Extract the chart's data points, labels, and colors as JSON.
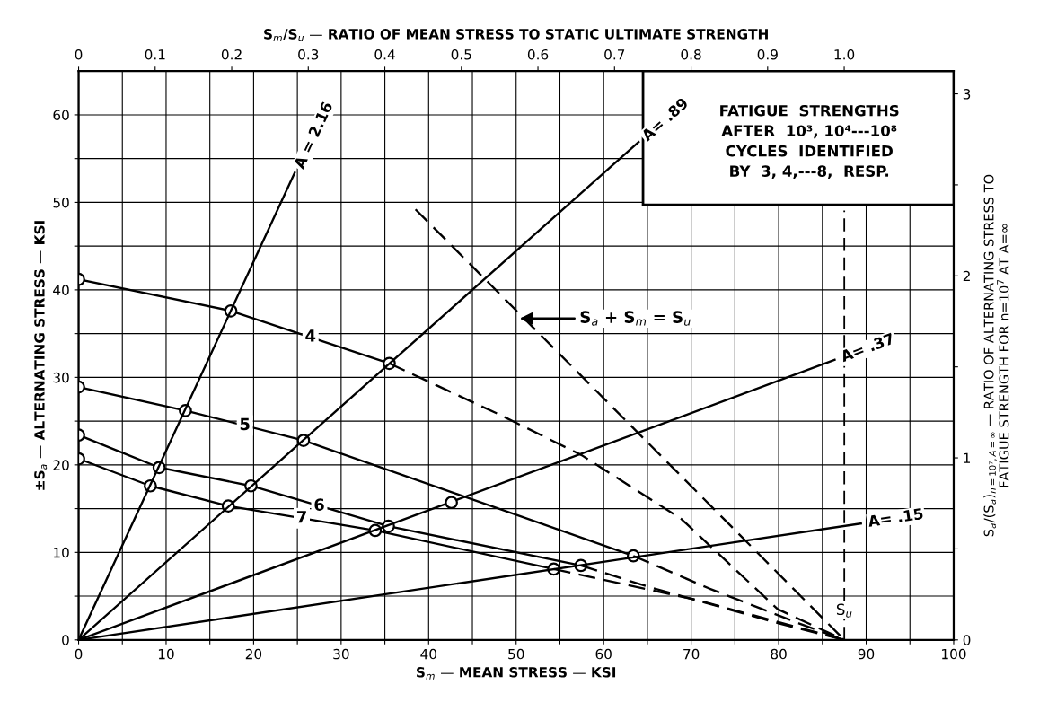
{
  "chart_data": {
    "type": "line",
    "xlabel": "S$_{m}$ — MEAN STRESS — KSI",
    "ylabel": "±S$_{a}$ — ALTERNATING STRESS — KSI",
    "x2label": "S$_{m}$/S$_{u}$ — RATIO OF MEAN STRESS TO STATIC ULTIMATE STRENGTH",
    "y2label": "S$_{a}$/(S$_{a}$)$_{n=10⁷,A=∞}$ — RATIO OF ALTERNATING STRESS TO\nFATIGUE STRENGTH FOR n=10$^{7}$ AT A=∞",
    "xlim": [
      0,
      100
    ],
    "ylim": [
      0,
      65
    ],
    "xticks": [
      0,
      {
        "value": 5,
        "label": null
      },
      10,
      {
        "value": 15,
        "label": null
      },
      20,
      {
        "value": 25,
        "label": null
      },
      30,
      {
        "value": 35,
        "label": null
      },
      40,
      {
        "value": 45,
        "label": null
      },
      50,
      {
        "value": 55,
        "label": null
      },
      60,
      {
        "value": 65,
        "label": null
      },
      70,
      {
        "value": 75,
        "label": null
      },
      80,
      {
        "value": 85,
        "label": null
      },
      90,
      {
        "value": 95,
        "label": null
      },
      100
    ],
    "yticks": [
      0,
      {
        "value": 5,
        "label": null
      },
      10,
      {
        "value": 15,
        "label": null
      },
      20,
      {
        "value": 25,
        "label": null
      },
      30,
      {
        "value": 35,
        "label": null
      },
      40,
      {
        "value": 45,
        "label": null
      },
      50,
      {
        "value": 55,
        "label": null
      },
      60
    ],
    "x2lim": [
      0,
      1.143
    ],
    "x2ticks": [
      0,
      0.1,
      0.2,
      0.3,
      0.4,
      0.5,
      0.6,
      0.7,
      0.8,
      0.9,
      {
        "value": 1.0,
        "label": "1.0"
      }
    ],
    "y2lim": [
      0,
      3.125
    ],
    "y2ticks": [
      0,
      {
        "value": 0.5,
        "label": null
      },
      1,
      {
        "value": 1.5,
        "label": null
      },
      2,
      {
        "value": 2.5,
        "label": null
      },
      3
    ],
    "grid": true,
    "legend": false,
    "marker": "circle",
    "line_style": "solid",
    "series": [
      {
        "color": "#000000",
        "x": [
          0,
          17.4,
          35.5
        ],
        "values": [
          41.2,
          37.6,
          31.6
        ]
      },
      {
        "color": "#000000",
        "x": [
          35.5,
          48.4,
          57.5,
          68.9,
          79.9,
          87.5
        ],
        "values": [
          31.6,
          25.6,
          21.1,
          13.8,
          3.5,
          0
        ],
        "marker": "none",
        "line_style": "dashed"
      },
      {
        "color": "#000000",
        "x": [
          0,
          12.2,
          25.7,
          63.4
        ],
        "values": [
          28.9,
          26.2,
          22.8,
          9.6
        ]
      },
      {
        "color": "#000000",
        "x": [
          63.4,
          72,
          82.3,
          87.5
        ],
        "values": [
          9.6,
          5.9,
          1.9,
          0
        ],
        "marker": "none",
        "line_style": "dashed"
      },
      {
        "color": "#000000",
        "x": [
          0,
          9.2,
          19.7,
          35.4,
          57.4
        ],
        "values": [
          23.4,
          19.7,
          17.6,
          13.0,
          8.5
        ]
      },
      {
        "color": "#000000",
        "x": [
          57.4,
          65,
          80.7,
          87.5
        ],
        "values": [
          8.5,
          6.1,
          1.7,
          0
        ],
        "marker": "none",
        "line_style": "dashed"
      },
      {
        "color": "#000000",
        "x": [
          0,
          8.2,
          17.1,
          33.9,
          54.3
        ],
        "values": [
          20.7,
          17.6,
          15.3,
          12.5,
          8.1
        ]
      },
      {
        "color": "#000000",
        "x": [
          54.3,
          70.5,
          87.5
        ],
        "values": [
          8.1,
          4.6,
          0
        ],
        "marker": "none",
        "line_style": "dashed"
      },
      {
        "color": "#000000",
        "type": "scatter",
        "x": [
          42.6
        ],
        "values": [
          15.7
        ]
      },
      {
        "color": "#000000",
        "x": [
          0,
          24.7
        ],
        "values": [
          0,
          53.4
        ],
        "marker": "none"
      },
      {
        "color": "#000000",
        "x": [
          0,
          64.0
        ],
        "values": [
          0,
          56.9
        ],
        "marker": "none"
      },
      {
        "color": "#000000",
        "x": [
          0,
          86.4
        ],
        "values": [
          0,
          32.0
        ],
        "marker": "none"
      },
      {
        "color": "#000000",
        "x": [
          0,
          89.4
        ],
        "values": [
          0,
          13.3
        ],
        "marker": "none"
      },
      {
        "color": "#000000",
        "x": [
          38.5,
          87.5
        ],
        "values": [
          49.2,
          0
        ],
        "marker": "none",
        "line_style": "dashed"
      }
    ],
    "ref_lines": [
      {
        "axis": "x",
        "value": 87.5,
        "label": "S$_{u}$",
        "line_style": "dashed",
        "color": "#000000"
      }
    ],
    "annotations": [
      {
        "text": "4",
        "x": 26.5,
        "y": 34.6
      },
      {
        "text": "5",
        "x": 19,
        "y": 24.5
      },
      {
        "text": "6",
        "x": 27.5,
        "y": 15.3
      },
      {
        "text": "7",
        "x": 25.5,
        "y": 13.9
      },
      {
        "text": "A = 2.16",
        "x": 24.7,
        "y": 53.4
      },
      {
        "text": "A= .89",
        "x": 64.0,
        "y": 56.9
      },
      {
        "text": "A= .37",
        "x": 86.4,
        "y": 32.0
      },
      {
        "text": "A= .15",
        "x": 89.4,
        "y": 13.3
      },
      "S$_{a}$ + S$_{m}$ = S$_{u}$",
      "FATIGUE  STRENGTHS\nAFTER  10³, 10⁴---10⁸\nCYCLES  IDENTIFIED\nBY  3, 4,---8,  RESP."
    ]
  }
}
